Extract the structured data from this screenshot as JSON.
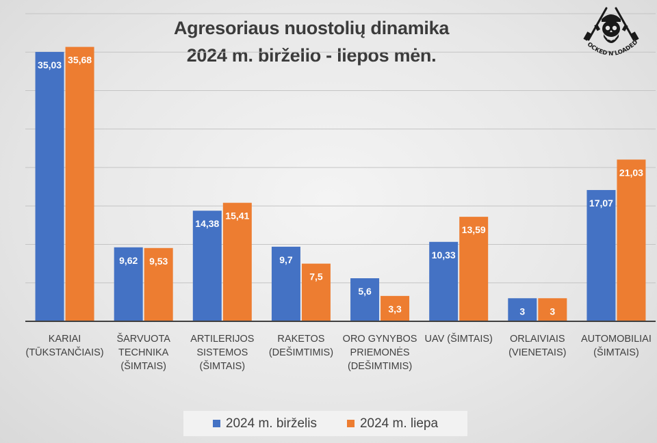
{
  "chart_data": {
    "type": "bar",
    "title_lines": [
      "Agresoriaus nuostolių dinamika",
      "2024 m. birželio - liepos mėn."
    ],
    "categories": [
      [
        "KARIAI",
        "(TŪKSTANČIAIS)"
      ],
      [
        "ŠARVUOTA",
        "TECHNIKA",
        "(ŠIMTAIS)"
      ],
      [
        "ARTILERIJOS",
        "SISTEMOS",
        "(ŠIMTAIS)"
      ],
      [
        "RAKETOS",
        "(DEŠIMTIMIS)"
      ],
      [
        "ORO GYNYBOS",
        "PRIEMONĖS",
        "(DEŠIMTIMIS)"
      ],
      [
        "UAV (ŠIMTAIS)"
      ],
      [
        "ORLAIVIAIS",
        "(VIENETAIS)"
      ],
      [
        "AUTOMOBILIAI",
        "(ŠIMTAIS)"
      ]
    ],
    "series": [
      {
        "name": "2024 m. birželis",
        "color": "#4472C4",
        "values": [
          35.03,
          9.62,
          14.38,
          9.7,
          5.6,
          10.33,
          3,
          17.07
        ],
        "labels": [
          "35,03",
          "9,62",
          "14,38",
          "9,7",
          "5,6",
          "10,33",
          "3",
          "17,07"
        ]
      },
      {
        "name": "2024 m. liepa",
        "color": "#ED7D31",
        "values": [
          35.68,
          9.53,
          15.41,
          7.5,
          3.3,
          13.59,
          3,
          21.03
        ],
        "labels": [
          "35,68",
          "9,53",
          "15,41",
          "7,5",
          "3,3",
          "13,59",
          "3",
          "21,03"
        ]
      }
    ],
    "ylim": [
      0,
      40
    ],
    "ytick_step": 5,
    "grid": true,
    "legend_position": "bottom"
  },
  "watermark": {
    "text": "LOCKED'N'LOADED",
    "icon": "skull-rifles-icon"
  }
}
